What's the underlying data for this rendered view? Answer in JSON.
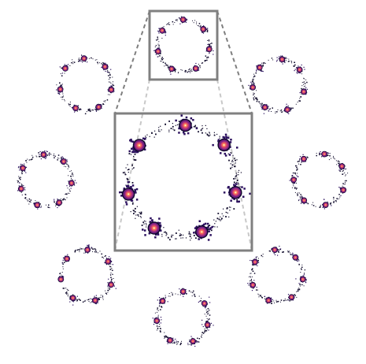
{
  "figure": {
    "background": "#ffffff",
    "colors": {
      "speck": "#0d0829",
      "halo": "#2c115f",
      "ring_outer": "#721f81",
      "ring_mid": "#b73779",
      "ring_inner": "#f1605d",
      "core": "#fe9f6d",
      "hot": "#fcfdbf",
      "zoom_box": "#808080",
      "zoom_line": "#7f7f7f"
    },
    "rings": [
      {
        "name": "ring-top",
        "spots": 7
      },
      {
        "name": "ring-top-right",
        "spots": 7
      },
      {
        "name": "ring-right",
        "spots": 7
      },
      {
        "name": "ring-bottom-right",
        "spots": 7
      },
      {
        "name": "ring-bottom",
        "spots": 7
      },
      {
        "name": "ring-bottom-left",
        "spots": 7
      },
      {
        "name": "ring-left",
        "spots": 7
      },
      {
        "name": "ring-top-left",
        "spots": 7
      }
    ],
    "inset": {
      "name": "zoomed-inset-ring",
      "spots": 7,
      "source": "ring-top"
    }
  }
}
